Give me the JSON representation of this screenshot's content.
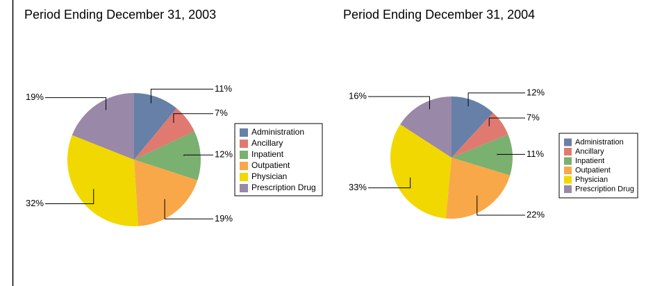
{
  "chart_data": [
    {
      "type": "pie",
      "title": "Period Ending December 31, 2003",
      "categories": [
        "Administration",
        "Ancillary",
        "Inpatient",
        "Outpatient",
        "Physician",
        "Prescription Drug"
      ],
      "values": [
        11,
        7,
        12,
        19,
        32,
        19
      ],
      "value_labels": [
        "11%",
        "7%",
        "12%",
        "19%",
        "32%",
        "19%"
      ],
      "colors": [
        "#6680a8",
        "#e07a70",
        "#7ab070",
        "#f8a848",
        "#f0d800",
        "#9a88a8"
      ]
    },
    {
      "type": "pie",
      "title": "Period Ending December 31, 2004",
      "categories": [
        "Administration",
        "Ancillary",
        "Inpatient",
        "Outpatient",
        "Physician",
        "Prescription Drug"
      ],
      "values": [
        12,
        7,
        11,
        22,
        33,
        16
      ],
      "value_labels": [
        "12%",
        "7%",
        "11%",
        "22%",
        "33%",
        "16%"
      ],
      "colors": [
        "#6680a8",
        "#e07a70",
        "#7ab070",
        "#f8a848",
        "#f0d800",
        "#9a88a8"
      ]
    }
  ]
}
